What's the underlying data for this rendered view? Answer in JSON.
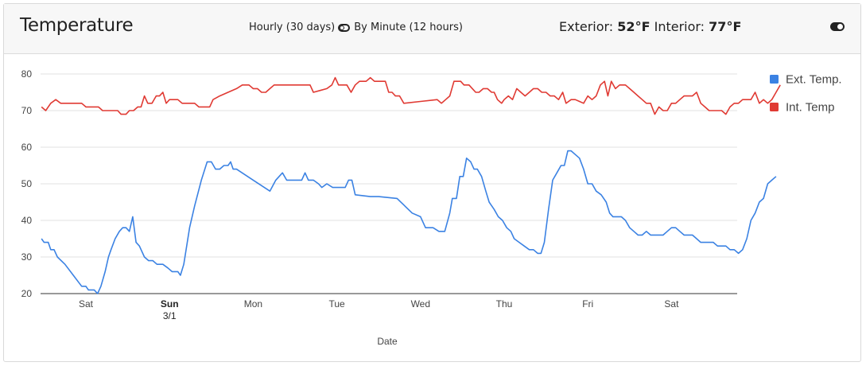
{
  "header": {
    "title": "Temperature",
    "hourly_label": "Hourly (30 days)",
    "minute_label": "By Minute (12 hours)",
    "exterior_label": "Exterior:",
    "exterior_value": "52°F",
    "interior_label": "Interior:",
    "interior_value": "77°F"
  },
  "chart_data": {
    "type": "line",
    "xlabel": "Date",
    "ylabel": "",
    "ylim": [
      20,
      80
    ],
    "yticks": [
      20,
      30,
      40,
      50,
      60,
      70,
      80
    ],
    "grid": true,
    "legend_position": "right",
    "x_ticks": [
      {
        "label": "Sat",
        "sublabel": "",
        "t": 1
      },
      {
        "label": "Sun",
        "sublabel": "3/1",
        "t": 2,
        "bold": true
      },
      {
        "label": "Mon",
        "sublabel": "",
        "t": 3
      },
      {
        "label": "Tue",
        "sublabel": "",
        "t": 4
      },
      {
        "label": "Wed",
        "sublabel": "",
        "t": 5
      },
      {
        "label": "Thu",
        "sublabel": "",
        "t": 6
      },
      {
        "label": "Fri",
        "sublabel": "",
        "t": 7
      },
      {
        "label": "Sat",
        "sublabel": "",
        "t": 8
      }
    ],
    "series": [
      {
        "name": "Ext. Temp.",
        "color": "#3b82e3",
        "points": [
          [
            0.47,
            35
          ],
          [
            0.5,
            34
          ],
          [
            0.55,
            34
          ],
          [
            0.58,
            32
          ],
          [
            0.62,
            32
          ],
          [
            0.66,
            30
          ],
          [
            0.75,
            28
          ],
          [
            0.85,
            25
          ],
          [
            0.95,
            22
          ],
          [
            1.0,
            22
          ],
          [
            1.03,
            21
          ],
          [
            1.1,
            21
          ],
          [
            1.14,
            20
          ],
          [
            1.18,
            22
          ],
          [
            1.23,
            26
          ],
          [
            1.27,
            30
          ],
          [
            1.3,
            32
          ],
          [
            1.35,
            35
          ],
          [
            1.4,
            37
          ],
          [
            1.44,
            38
          ],
          [
            1.48,
            38
          ],
          [
            1.52,
            37
          ],
          [
            1.56,
            41
          ],
          [
            1.6,
            34
          ],
          [
            1.64,
            33
          ],
          [
            1.7,
            30
          ],
          [
            1.75,
            29
          ],
          [
            1.8,
            29
          ],
          [
            1.85,
            28
          ],
          [
            1.92,
            28
          ],
          [
            1.98,
            27
          ],
          [
            2.03,
            26
          ],
          [
            2.1,
            26
          ],
          [
            2.13,
            25
          ],
          [
            2.17,
            28
          ],
          [
            2.24,
            38
          ],
          [
            2.3,
            44
          ],
          [
            2.38,
            51
          ],
          [
            2.45,
            56
          ],
          [
            2.5,
            56
          ],
          [
            2.55,
            54
          ],
          [
            2.6,
            54
          ],
          [
            2.65,
            55
          ],
          [
            2.7,
            55
          ],
          [
            2.73,
            56
          ],
          [
            2.76,
            54
          ],
          [
            2.8,
            54
          ],
          [
            3.0,
            51
          ],
          [
            3.2,
            48
          ],
          [
            3.27,
            51
          ],
          [
            3.35,
            53
          ],
          [
            3.4,
            51
          ],
          [
            3.5,
            51
          ],
          [
            3.58,
            51
          ],
          [
            3.62,
            53
          ],
          [
            3.66,
            51
          ],
          [
            3.72,
            51
          ],
          [
            3.78,
            50
          ],
          [
            3.82,
            49
          ],
          [
            3.88,
            50
          ],
          [
            3.95,
            49
          ],
          [
            4.05,
            49
          ],
          [
            4.1,
            49
          ],
          [
            4.14,
            51
          ],
          [
            4.18,
            51
          ],
          [
            4.22,
            47
          ],
          [
            4.4,
            46.5
          ],
          [
            4.5,
            46.5
          ],
          [
            4.72,
            46
          ],
          [
            4.9,
            42
          ],
          [
            5.0,
            41
          ],
          [
            5.06,
            38
          ],
          [
            5.15,
            38
          ],
          [
            5.22,
            37
          ],
          [
            5.29,
            37
          ],
          [
            5.35,
            42
          ],
          [
            5.38,
            46
          ],
          [
            5.43,
            46
          ],
          [
            5.47,
            52
          ],
          [
            5.51,
            52
          ],
          [
            5.55,
            57
          ],
          [
            5.6,
            56
          ],
          [
            5.64,
            54
          ],
          [
            5.68,
            54
          ],
          [
            5.73,
            52
          ],
          [
            5.78,
            48
          ],
          [
            5.82,
            45
          ],
          [
            5.88,
            43
          ],
          [
            5.93,
            41
          ],
          [
            5.98,
            40
          ],
          [
            6.03,
            38
          ],
          [
            6.08,
            37
          ],
          [
            6.12,
            35
          ],
          [
            6.18,
            34
          ],
          [
            6.24,
            33
          ],
          [
            6.3,
            32
          ],
          [
            6.35,
            32
          ],
          [
            6.4,
            31
          ],
          [
            6.44,
            31
          ],
          [
            6.48,
            34
          ],
          [
            6.53,
            43
          ],
          [
            6.58,
            51
          ],
          [
            6.63,
            53
          ],
          [
            6.68,
            55
          ],
          [
            6.72,
            55
          ],
          [
            6.76,
            59
          ],
          [
            6.8,
            59
          ],
          [
            6.85,
            58
          ],
          [
            6.9,
            57
          ],
          [
            6.95,
            54
          ],
          [
            7.0,
            50
          ],
          [
            7.05,
            50
          ],
          [
            7.1,
            48
          ],
          [
            7.16,
            47
          ],
          [
            7.22,
            45
          ],
          [
            7.26,
            42
          ],
          [
            7.3,
            41
          ],
          [
            7.4,
            41
          ],
          [
            7.45,
            40
          ],
          [
            7.5,
            38
          ],
          [
            7.55,
            37
          ],
          [
            7.6,
            36
          ],
          [
            7.65,
            36
          ],
          [
            7.7,
            37
          ],
          [
            7.75,
            36
          ],
          [
            7.8,
            36
          ],
          [
            7.85,
            36
          ],
          [
            7.9,
            36
          ],
          [
            7.95,
            37
          ],
          [
            8.0,
            38
          ],
          [
            8.05,
            38
          ],
          [
            8.1,
            37
          ],
          [
            8.15,
            36
          ],
          [
            8.2,
            36
          ],
          [
            8.25,
            36
          ],
          [
            8.3,
            35
          ],
          [
            8.35,
            34
          ],
          [
            8.45,
            34
          ],
          [
            8.5,
            34
          ],
          [
            8.55,
            33
          ],
          [
            8.6,
            33
          ],
          [
            8.65,
            33
          ],
          [
            8.7,
            32
          ],
          [
            8.75,
            32
          ],
          [
            8.8,
            31
          ],
          [
            8.85,
            32
          ],
          [
            8.9,
            35
          ],
          [
            8.95,
            40
          ],
          [
            9.0,
            42
          ],
          [
            9.05,
            45
          ],
          [
            9.1,
            46
          ],
          [
            9.15,
            50
          ],
          [
            9.2,
            51
          ],
          [
            9.25,
            52
          ]
        ]
      },
      {
        "name": "Int. Temp",
        "color": "#e03a33",
        "points": [
          [
            0.47,
            71
          ],
          [
            0.52,
            70
          ],
          [
            0.58,
            72
          ],
          [
            0.64,
            73
          ],
          [
            0.7,
            72
          ],
          [
            0.8,
            72
          ],
          [
            0.95,
            72
          ],
          [
            1.0,
            71
          ],
          [
            1.05,
            71
          ],
          [
            1.15,
            71
          ],
          [
            1.2,
            70
          ],
          [
            1.3,
            70
          ],
          [
            1.38,
            70
          ],
          [
            1.42,
            69
          ],
          [
            1.48,
            69
          ],
          [
            1.52,
            70
          ],
          [
            1.57,
            70
          ],
          [
            1.62,
            71
          ],
          [
            1.66,
            71
          ],
          [
            1.7,
            74
          ],
          [
            1.74,
            72
          ],
          [
            1.79,
            72
          ],
          [
            1.84,
            74
          ],
          [
            1.88,
            74
          ],
          [
            1.92,
            75
          ],
          [
            1.96,
            72
          ],
          [
            2.0,
            73
          ],
          [
            2.05,
            73
          ],
          [
            2.1,
            73
          ],
          [
            2.15,
            72
          ],
          [
            2.2,
            72
          ],
          [
            2.3,
            72
          ],
          [
            2.35,
            71
          ],
          [
            2.4,
            71
          ],
          [
            2.48,
            71
          ],
          [
            2.52,
            73
          ],
          [
            2.6,
            74
          ],
          [
            2.7,
            75
          ],
          [
            2.8,
            76
          ],
          [
            2.87,
            77
          ],
          [
            2.95,
            77
          ],
          [
            3.0,
            76
          ],
          [
            3.05,
            76
          ],
          [
            3.1,
            75
          ],
          [
            3.15,
            75
          ],
          [
            3.2,
            76
          ],
          [
            3.25,
            77
          ],
          [
            3.35,
            77
          ],
          [
            3.5,
            77
          ],
          [
            3.6,
            77
          ],
          [
            3.68,
            77
          ],
          [
            3.72,
            75
          ],
          [
            3.8,
            75.5
          ],
          [
            3.88,
            76
          ],
          [
            3.94,
            77
          ],
          [
            3.98,
            79
          ],
          [
            4.02,
            77
          ],
          [
            4.06,
            77
          ],
          [
            4.12,
            77
          ],
          [
            4.17,
            75
          ],
          [
            4.22,
            77
          ],
          [
            4.27,
            78
          ],
          [
            4.35,
            78
          ],
          [
            4.4,
            79
          ],
          [
            4.45,
            78
          ],
          [
            4.5,
            78
          ],
          [
            4.58,
            78
          ],
          [
            4.62,
            75
          ],
          [
            4.66,
            75
          ],
          [
            4.7,
            74
          ],
          [
            4.75,
            74
          ],
          [
            4.8,
            72
          ],
          [
            5.0,
            72.5
          ],
          [
            5.2,
            73
          ],
          [
            5.25,
            72
          ],
          [
            5.3,
            73
          ],
          [
            5.35,
            74
          ],
          [
            5.4,
            78
          ],
          [
            5.48,
            78
          ],
          [
            5.52,
            77
          ],
          [
            5.58,
            77
          ],
          [
            5.62,
            76
          ],
          [
            5.66,
            75
          ],
          [
            5.7,
            75
          ],
          [
            5.75,
            76
          ],
          [
            5.8,
            76
          ],
          [
            5.85,
            75
          ],
          [
            5.88,
            75
          ],
          [
            5.92,
            73
          ],
          [
            5.97,
            72
          ],
          [
            6.0,
            73
          ],
          [
            6.05,
            74
          ],
          [
            6.1,
            73
          ],
          [
            6.15,
            76
          ],
          [
            6.2,
            75
          ],
          [
            6.25,
            74
          ],
          [
            6.3,
            75
          ],
          [
            6.35,
            76
          ],
          [
            6.4,
            76
          ],
          [
            6.45,
            75
          ],
          [
            6.5,
            75
          ],
          [
            6.55,
            74
          ],
          [
            6.6,
            74
          ],
          [
            6.65,
            73
          ],
          [
            6.7,
            75
          ],
          [
            6.74,
            72
          ],
          [
            6.8,
            73
          ],
          [
            6.85,
            73
          ],
          [
            6.9,
            72.5
          ],
          [
            6.95,
            72
          ],
          [
            7.0,
            74
          ],
          [
            7.05,
            73
          ],
          [
            7.1,
            74
          ],
          [
            7.15,
            77
          ],
          [
            7.2,
            78
          ],
          [
            7.24,
            74
          ],
          [
            7.28,
            78
          ],
          [
            7.33,
            76
          ],
          [
            7.38,
            77
          ],
          [
            7.45,
            77
          ],
          [
            7.5,
            76
          ],
          [
            7.55,
            75
          ],
          [
            7.6,
            74
          ],
          [
            7.65,
            73
          ],
          [
            7.7,
            72
          ],
          [
            7.75,
            72
          ],
          [
            7.8,
            69
          ],
          [
            7.85,
            71
          ],
          [
            7.9,
            70
          ],
          [
            7.95,
            70
          ],
          [
            8.0,
            72
          ],
          [
            8.05,
            72
          ],
          [
            8.1,
            73
          ],
          [
            8.15,
            74
          ],
          [
            8.2,
            74
          ],
          [
            8.25,
            74
          ],
          [
            8.3,
            75
          ],
          [
            8.35,
            72
          ],
          [
            8.4,
            71
          ],
          [
            8.45,
            70
          ],
          [
            8.55,
            70
          ],
          [
            8.6,
            70
          ],
          [
            8.65,
            69
          ],
          [
            8.7,
            71
          ],
          [
            8.75,
            72
          ],
          [
            8.8,
            72
          ],
          [
            8.85,
            73
          ],
          [
            8.9,
            73
          ],
          [
            8.95,
            73
          ],
          [
            9.0,
            75
          ],
          [
            9.05,
            72
          ],
          [
            9.1,
            73
          ],
          [
            9.15,
            72
          ],
          [
            9.2,
            73
          ],
          [
            9.25,
            75
          ],
          [
            9.3,
            77
          ]
        ]
      }
    ],
    "legend": [
      {
        "label": "Ext. Temp.",
        "color": "#3b82e3"
      },
      {
        "label": "Int. Temp",
        "color": "#e03a33"
      }
    ]
  }
}
